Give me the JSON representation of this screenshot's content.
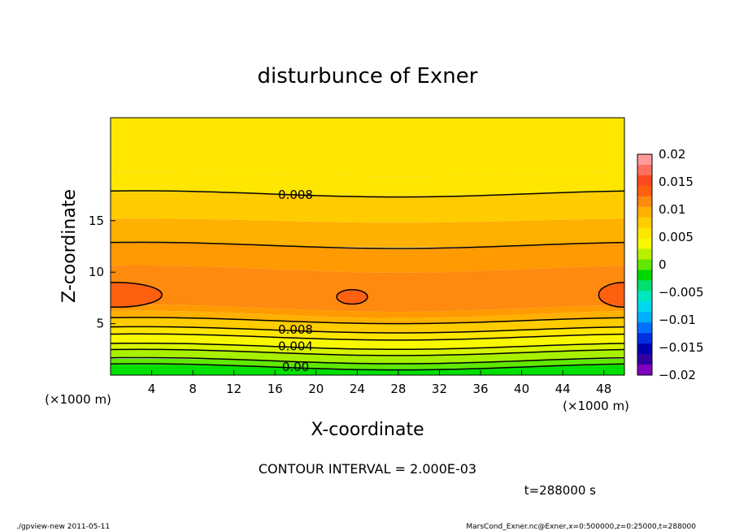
{
  "chart_data": {
    "type": "contour",
    "title": "disturbunce of Exner",
    "xlabel": "X-coordinate",
    "ylabel": "Z-coordinate",
    "x_unit": "(×1000 m)",
    "y_unit": "(×1000 m)",
    "xlim": [
      0,
      50
    ],
    "ylim": [
      0,
      25
    ],
    "x_ticks": [
      4,
      8,
      12,
      16,
      20,
      24,
      28,
      32,
      36,
      40,
      44,
      48
    ],
    "y_ticks": [
      5,
      10,
      15
    ],
    "contour_interval_text": "CONTOUR INTERVAL = 2.000E-03",
    "time_text": "t=288000 s",
    "contour_labels": [
      {
        "text": "0.008",
        "x": 18,
        "z": 17.5
      },
      {
        "text": "0.008",
        "x": 18,
        "z": 4.4
      },
      {
        "text": "0.004",
        "x": 18,
        "z": 2.8
      },
      {
        "text": "0.00",
        "x": 18,
        "z": 0.8
      }
    ],
    "colorbar": {
      "labels": [
        "0.02",
        "0.015",
        "0.01",
        "0.005",
        "0",
        "−0.005",
        "−0.01",
        "−0.015",
        "−0.02"
      ],
      "levels": [
        0.02,
        0.015,
        0.01,
        0.005,
        0,
        -0.005,
        -0.01,
        -0.015,
        -0.02
      ],
      "colors": [
        "#ff9a9a",
        "#ff7060",
        "#ff4a20",
        "#ff6010",
        "#ff8a10",
        "#ffb000",
        "#ffcc00",
        "#ffe600",
        "#f8f800",
        "#b8f000",
        "#60e800",
        "#00d800",
        "#00e070",
        "#00e8c0",
        "#00d8f0",
        "#00b0ff",
        "#0070ff",
        "#0030e0",
        "#0000b0",
        "#3000a0",
        "#8000c0"
      ]
    },
    "field_bands": [
      {
        "top": 25.0,
        "bottom": 19.5,
        "color": "#ffe600"
      },
      {
        "top": 19.5,
        "bottom": 17.6,
        "color": "#ffe600"
      },
      {
        "top": 17.6,
        "bottom": 15.0,
        "color": "#ffcc00"
      },
      {
        "top": 15.0,
        "bottom": 12.6,
        "color": "#ffb000"
      },
      {
        "top": 12.6,
        "bottom": 10.3,
        "color": "#ff9a00"
      },
      {
        "top": 10.3,
        "bottom": 6.5,
        "color": "#ff8a10"
      },
      {
        "top": 6.5,
        "bottom": 5.9,
        "color": "#ff9a00"
      },
      {
        "top": 5.9,
        "bottom": 5.3,
        "color": "#ffb000"
      },
      {
        "top": 5.3,
        "bottom": 4.4,
        "color": "#ffcc00"
      },
      {
        "top": 4.4,
        "bottom": 3.7,
        "color": "#ffe600"
      },
      {
        "top": 3.7,
        "bottom": 2.8,
        "color": "#f8f800"
      },
      {
        "top": 2.8,
        "bottom": 2.2,
        "color": "#d8f400"
      },
      {
        "top": 2.2,
        "bottom": 1.4,
        "color": "#a8f000"
      },
      {
        "top": 1.4,
        "bottom": 0.8,
        "color": "#60e800"
      },
      {
        "top": 0.8,
        "bottom": 0.0,
        "color": "#00e000"
      }
    ]
  },
  "footer": {
    "left": "./gpview-new  2011-05-11",
    "right": "MarsCond_Exner.nc@Exner,x=0:500000,z=0:25000,t=288000"
  }
}
